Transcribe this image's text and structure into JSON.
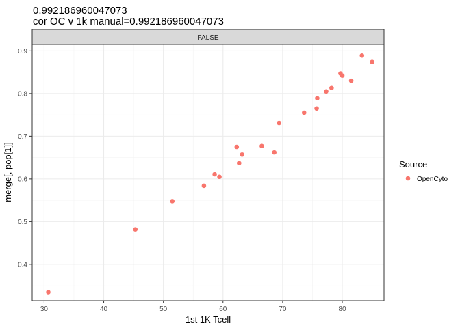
{
  "chart_data": {
    "type": "scatter",
    "title": "0.992186960047073",
    "subtitle": "cor OC v 1k manual=0.992186960047073",
    "xlabel": "1st 1K Tcell",
    "ylabel": "merge[, pop[1]]",
    "facet_label": "FALSE",
    "xlim": [
      28,
      87
    ],
    "ylim": [
      0.315,
      0.915
    ],
    "x_ticks": [
      30,
      40,
      50,
      60,
      70,
      80
    ],
    "y_ticks": [
      0.4,
      0.5,
      0.6,
      0.7,
      0.8,
      0.9
    ],
    "x_tick_labels": [
      "30",
      "40",
      "50",
      "60",
      "70",
      "80"
    ],
    "y_tick_labels": [
      "0.4",
      "0.5",
      "0.6",
      "0.7",
      "0.8",
      "0.9"
    ],
    "grid": true,
    "legend": {
      "title": "Source",
      "position": "right",
      "entries": [
        {
          "label": "OpenCyto",
          "color": "#F8766D"
        }
      ]
    },
    "series": [
      {
        "name": "OpenCyto",
        "color": "#F8766D",
        "points": [
          {
            "x": 30.7,
            "y": 0.335
          },
          {
            "x": 45.3,
            "y": 0.482
          },
          {
            "x": 51.5,
            "y": 0.548
          },
          {
            "x": 56.8,
            "y": 0.584
          },
          {
            "x": 58.6,
            "y": 0.611
          },
          {
            "x": 59.4,
            "y": 0.605
          },
          {
            "x": 62.3,
            "y": 0.675
          },
          {
            "x": 62.7,
            "y": 0.637
          },
          {
            "x": 63.2,
            "y": 0.657
          },
          {
            "x": 66.5,
            "y": 0.677
          },
          {
            "x": 68.6,
            "y": 0.662
          },
          {
            "x": 69.4,
            "y": 0.731
          },
          {
            "x": 73.6,
            "y": 0.755
          },
          {
            "x": 75.7,
            "y": 0.765
          },
          {
            "x": 75.8,
            "y": 0.789
          },
          {
            "x": 77.3,
            "y": 0.805
          },
          {
            "x": 78.2,
            "y": 0.813
          },
          {
            "x": 79.7,
            "y": 0.847
          },
          {
            "x": 80.0,
            "y": 0.842
          },
          {
            "x": 81.5,
            "y": 0.83
          },
          {
            "x": 83.3,
            "y": 0.889
          },
          {
            "x": 85.0,
            "y": 0.874
          }
        ]
      }
    ]
  }
}
